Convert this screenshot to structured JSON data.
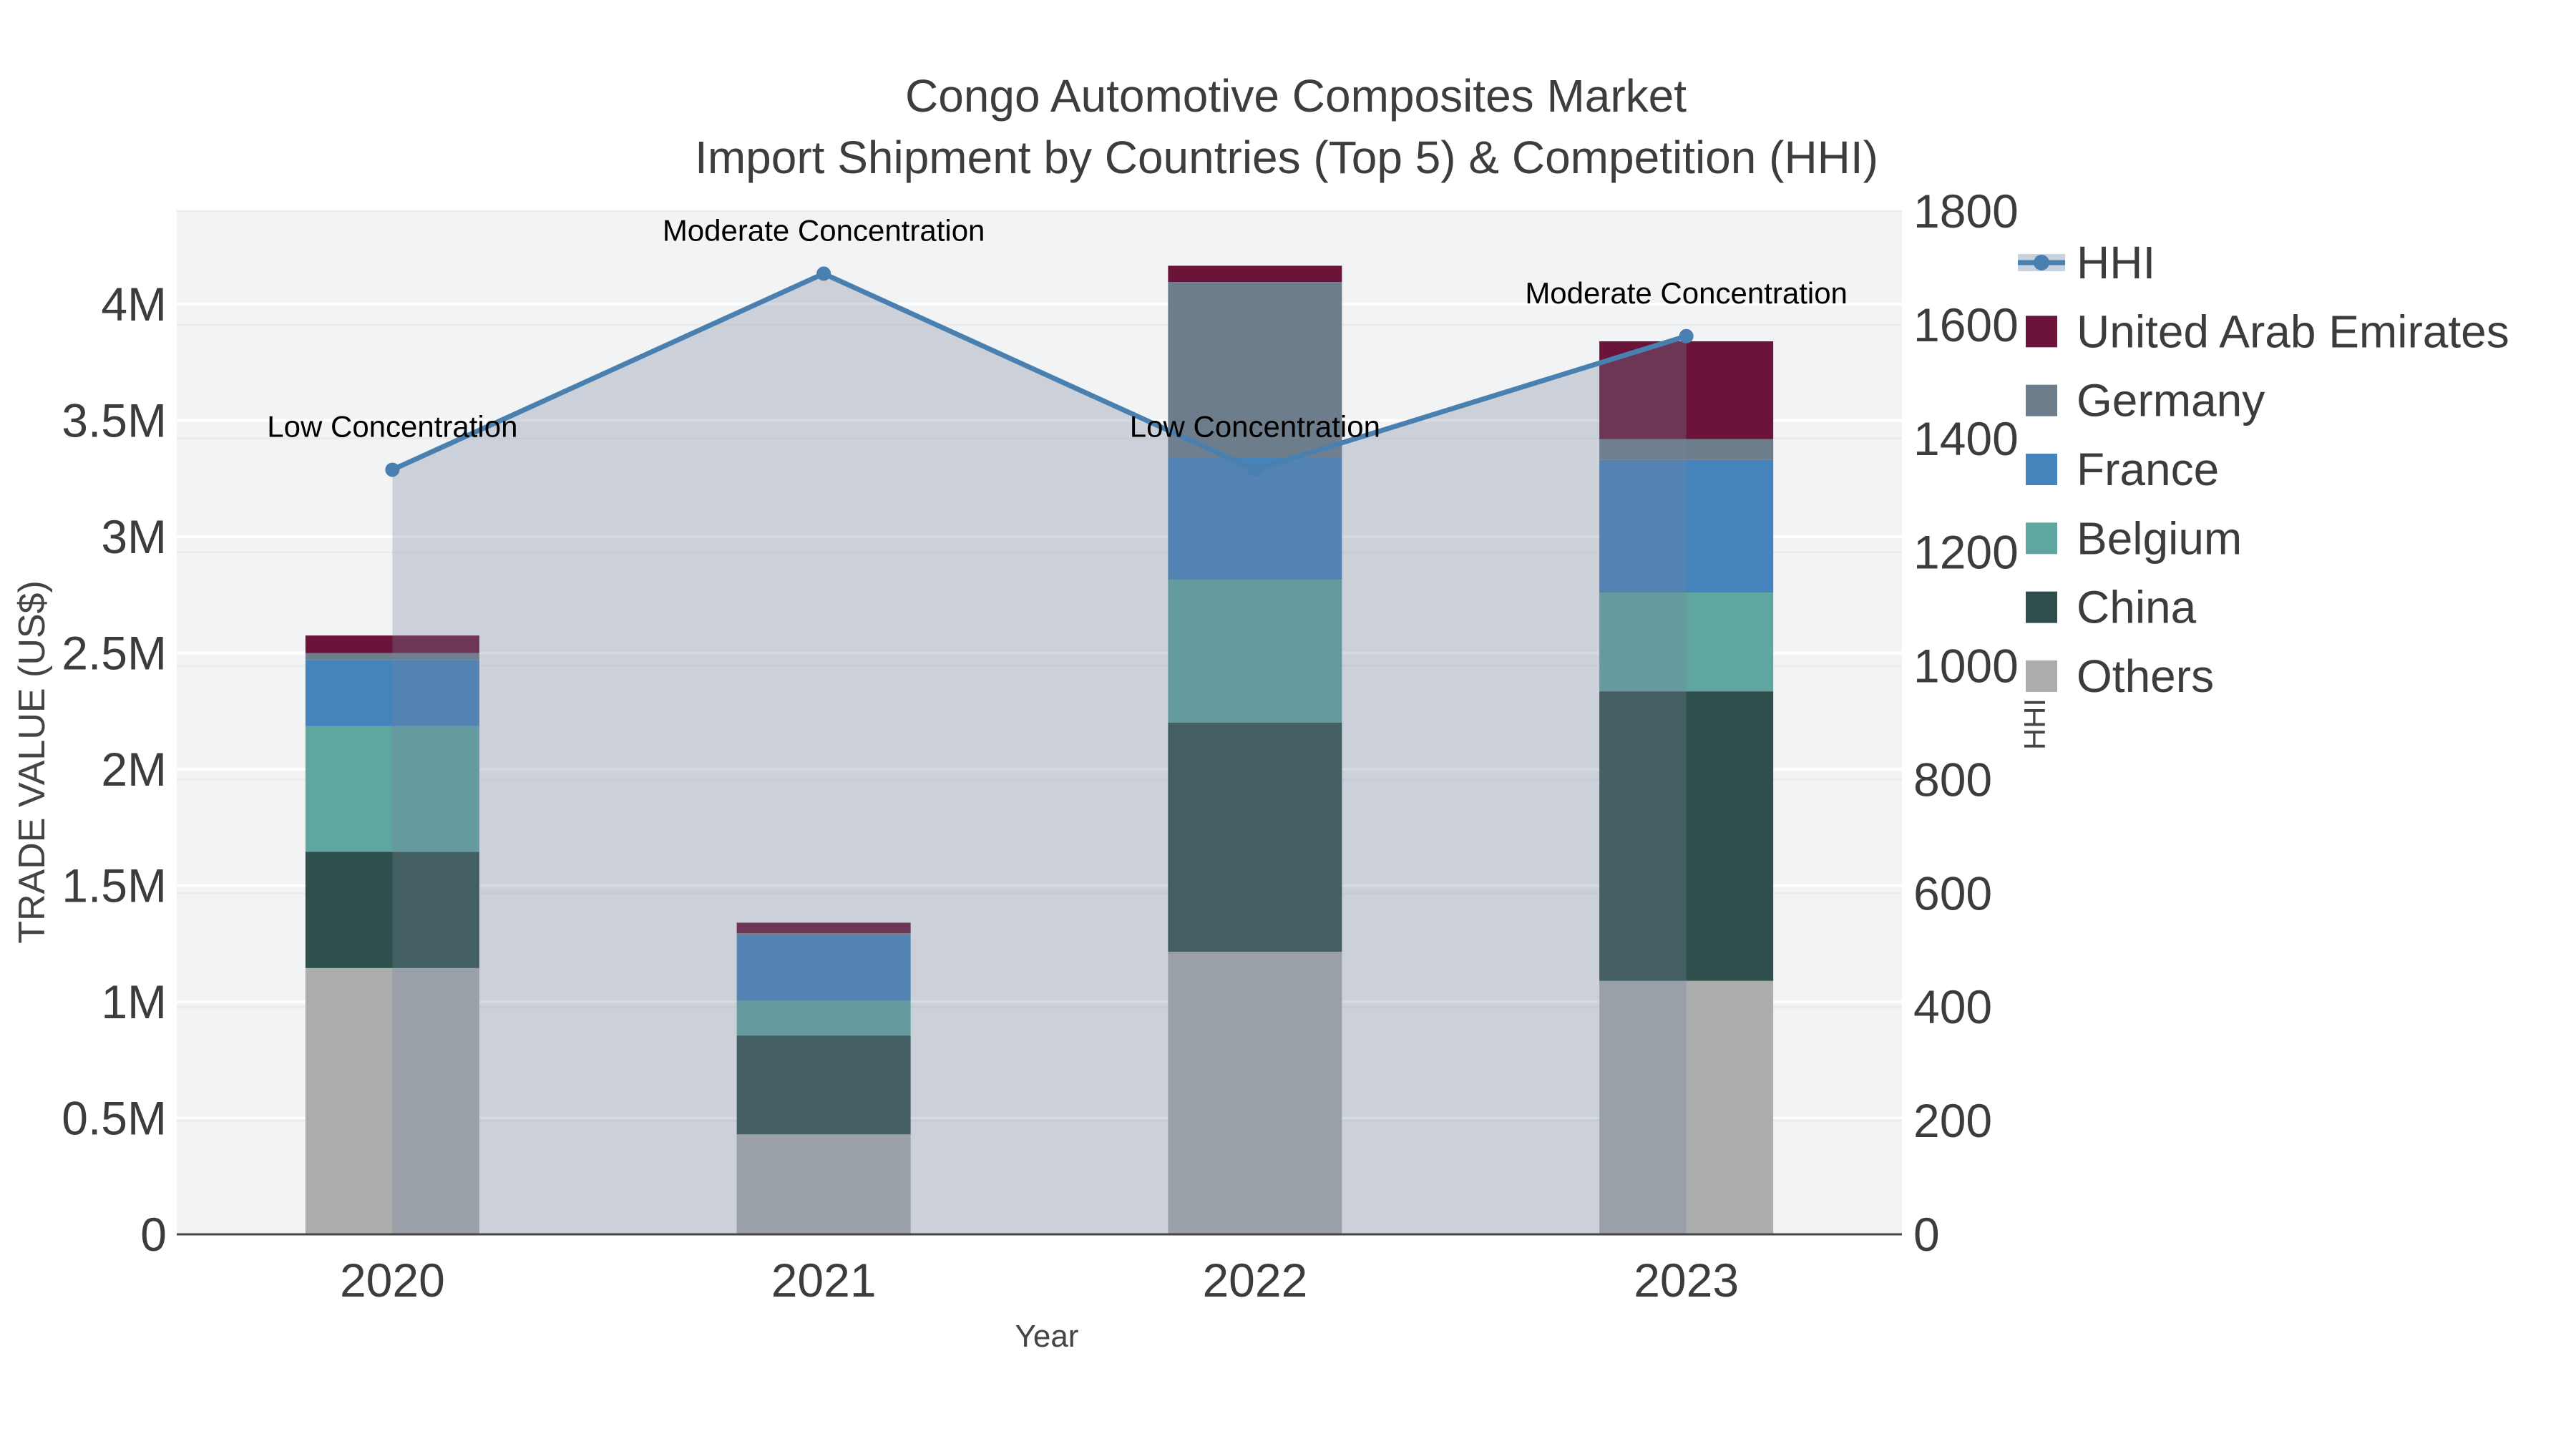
{
  "title": {
    "line1": "Congo Automotive Composites Market",
    "line2": "Import Shipment by Countries (Top 5) & Competition (HHI)"
  },
  "chart_data": {
    "type": "bar+line",
    "title": "Congo Automotive Composites Market Import Shipment by Countries (Top 5) & Competition (HHI)",
    "xlabel": "Year",
    "ylabel": "TRADE VALUE (US$)",
    "y2label": "HHI",
    "categories": [
      "2020",
      "2021",
      "2022",
      "2023"
    ],
    "series": [
      {
        "name": "Others",
        "color": "#ABACAC",
        "values": [
          1145000,
          430000,
          1215000,
          1090000
        ]
      },
      {
        "name": "China",
        "color": "#2E4F4B",
        "values": [
          500000,
          425000,
          985000,
          1245000
        ]
      },
      {
        "name": "Belgium",
        "color": "#5FA5A0",
        "values": [
          540000,
          150000,
          615000,
          425000
        ]
      },
      {
        "name": "France",
        "color": "#4583BC",
        "values": [
          285000,
          280000,
          525000,
          570000
        ]
      },
      {
        "name": "Germany",
        "color": "#6E7D8B",
        "values": [
          30000,
          10000,
          755000,
          90000
        ]
      },
      {
        "name": "United Arab Emirates",
        "color": "#6B1339",
        "values": [
          75000,
          45000,
          70000,
          420000
        ]
      }
    ],
    "line_series": {
      "name": "HHI",
      "color": "#4A80B0",
      "fill_color": "rgba(116,131,155,0.30)",
      "values": [
        1345,
        1690,
        1345,
        1580
      ]
    },
    "annotations": [
      {
        "x": "2020",
        "text": "Low Concentration"
      },
      {
        "x": "2021",
        "text": "Moderate Concentration"
      },
      {
        "x": "2022",
        "text": "Low Concentration"
      },
      {
        "x": "2023",
        "text": "Moderate Concentration"
      }
    ],
    "ylim": [
      0,
      4400000
    ],
    "y2lim": [
      0,
      1800
    ],
    "y_ticks": {
      "values": [
        0,
        500000,
        1000000,
        1500000,
        2000000,
        2500000,
        3000000,
        3500000,
        4000000
      ],
      "labels": [
        "0",
        "0.5M",
        "1M",
        "1.5M",
        "2M",
        "2.5M",
        "3M",
        "3.5M",
        "4M"
      ]
    },
    "y2_ticks": {
      "values": [
        0,
        200,
        400,
        600,
        800,
        1000,
        1200,
        1400,
        1600,
        1800
      ],
      "labels": [
        "0",
        "200",
        "400",
        "600",
        "800",
        "1000",
        "1200",
        "1400",
        "1600",
        "1800"
      ]
    },
    "legend": {
      "position": "right",
      "items": [
        "HHI",
        "United Arab Emirates",
        "Germany",
        "France",
        "Belgium",
        "China",
        "Others"
      ]
    },
    "grid": true,
    "plot_bg": "#F2F3F4"
  },
  "colors": {
    "accent": "#4A80B0",
    "background": "#FFFFFF",
    "plot_bg": "#F2F3F4",
    "grid_major": "#FFFFFF",
    "grid_secondary": "#E8EAEC",
    "axis_line": "#444444",
    "title_text": "#3D3D3D",
    "tick_text": "#3C3C3C",
    "annotation_text": "#000000"
  }
}
